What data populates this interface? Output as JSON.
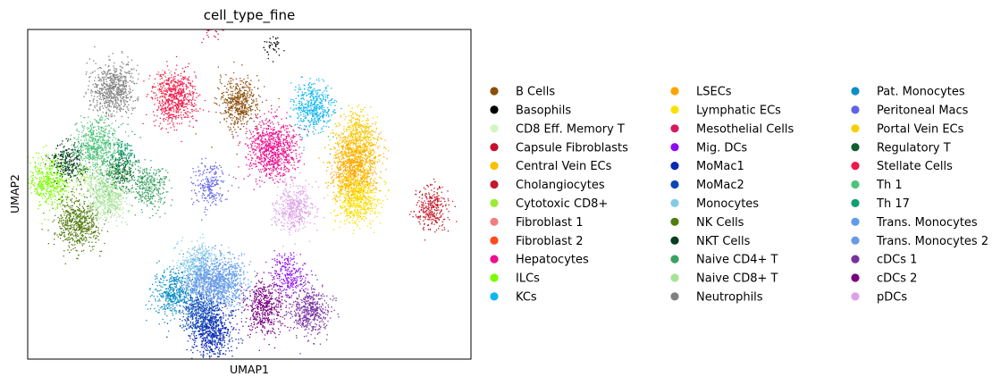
{
  "chart_data": {
    "type": "scatter",
    "title": "cell_type_fine",
    "xlabel": "UMAP1",
    "ylabel": "UMAP2",
    "xticks": [],
    "yticks": [],
    "grid": false,
    "legend_position": "right",
    "x_range": [
      -6.5,
      22
    ],
    "y_range": [
      -6,
      14.5
    ],
    "series": [
      {
        "name": "B Cells",
        "color": "#8b4e0b",
        "clusters": [
          {
            "x": 7.1,
            "y": 9.9,
            "n": 500
          }
        ]
      },
      {
        "name": "Basophils",
        "color": "#000000",
        "clusters": [
          {
            "x": 9.2,
            "y": 13.5,
            "n": 40
          }
        ]
      },
      {
        "name": "CD8 Eff. Memory T",
        "color": "#d4f5c2",
        "clusters": [
          {
            "x": -1.8,
            "y": 6.2,
            "n": 30
          }
        ]
      },
      {
        "name": "Capsule Fibroblasts",
        "color": "#c8102e",
        "clusters": [
          {
            "x": 5.6,
            "y": 14.9,
            "n": 60
          }
        ]
      },
      {
        "name": "Central Vein ECs",
        "color": "#fbbf00",
        "clusters": [
          {
            "x": 14.6,
            "y": 7.2,
            "n": 650
          }
        ]
      },
      {
        "name": "Cholangiocytes",
        "color": "#c21a2a",
        "clusters": [
          {
            "x": 19.5,
            "y": 3.4,
            "n": 300
          }
        ]
      },
      {
        "name": "Cytotoxic CD8+",
        "color": "#9eea38",
        "clusters": [
          {
            "x": -2.8,
            "y": 5.5,
            "n": 60
          }
        ]
      },
      {
        "name": "Fibroblast 1",
        "color": "#f08080",
        "clusters": [
          {
            "x": 2.3,
            "y": 11.1,
            "n": 60
          }
        ]
      },
      {
        "name": "Fibroblast 2",
        "color": "#ff4a1c",
        "clusters": [
          {
            "x": 2.4,
            "y": 10.9,
            "n": 15
          }
        ]
      },
      {
        "name": "Hepatocytes",
        "color": "#ec0f8f",
        "clusters": [
          {
            "x": 9.2,
            "y": 7.0,
            "n": 850
          }
        ]
      },
      {
        "name": "ILCs",
        "color": "#7cfc00",
        "clusters": [
          {
            "x": -5.1,
            "y": 5.0,
            "n": 480
          }
        ]
      },
      {
        "name": "KCs",
        "color": "#10b6f0",
        "clusters": [
          {
            "x": 11.8,
            "y": 9.7,
            "n": 480
          }
        ]
      },
      {
        "name": "LSECs",
        "color": "#fda300",
        "clusters": [
          {
            "x": 14.5,
            "y": 5.5,
            "n": 650
          }
        ]
      },
      {
        "name": "Lymphatic ECs",
        "color": "#fae105",
        "clusters": [
          {
            "x": 14.7,
            "y": 4.0,
            "n": 600
          }
        ]
      },
      {
        "name": "Mesothelial Cells",
        "color": "#d8175f",
        "clusters": [
          {
            "x": 5.0,
            "y": 14.7,
            "n": 40
          }
        ]
      },
      {
        "name": "Mig. DCs",
        "color": "#8f0bf0",
        "clusters": [
          {
            "x": 10.3,
            "y": -0.8,
            "n": 250
          }
        ]
      },
      {
        "name": "MoMac1",
        "color": "#0a28b4",
        "clusters": [
          {
            "x": 5.4,
            "y": -4.3,
            "n": 600
          }
        ]
      },
      {
        "name": "MoMac2",
        "color": "#0a46b4",
        "clusters": [
          {
            "x": 4.6,
            "y": -3.1,
            "n": 450
          }
        ]
      },
      {
        "name": "Monocytes",
        "color": "#82cce8",
        "clusters": [
          {
            "x": 4.4,
            "y": -0.2,
            "n": 450
          }
        ]
      },
      {
        "name": "NK Cells",
        "color": "#537c0f",
        "clusters": [
          {
            "x": -3.3,
            "y": 2.4,
            "n": 600
          }
        ]
      },
      {
        "name": "NKT Cells",
        "color": "#063d24",
        "clusters": [
          {
            "x": -3.9,
            "y": 6.2,
            "n": 280
          }
        ]
      },
      {
        "name": "Naive CD4+ T",
        "color": "#3aa262",
        "clusters": [
          {
            "x": 1.3,
            "y": 4.6,
            "n": 320
          },
          {
            "x": -0.8,
            "y": 5.6,
            "n": 200
          }
        ]
      },
      {
        "name": "Naive CD8+ T",
        "color": "#a6e397",
        "clusters": [
          {
            "x": -1.4,
            "y": 4.2,
            "n": 550
          }
        ]
      },
      {
        "name": "Neutrophils",
        "color": "#808080",
        "clusters": [
          {
            "x": -1.0,
            "y": 10.8,
            "n": 650
          }
        ]
      },
      {
        "name": "Pat. Monocytes",
        "color": "#0a8ec4",
        "clusters": [
          {
            "x": 2.8,
            "y": -1.9,
            "n": 450
          }
        ]
      },
      {
        "name": "Peritoneal Macs",
        "color": "#6262e8",
        "clusters": [
          {
            "x": 5.2,
            "y": 4.8,
            "n": 230
          }
        ]
      },
      {
        "name": "Portal Vein ECs",
        "color": "#f8d000",
        "clusters": [
          {
            "x": 14.9,
            "y": 8.4,
            "n": 120
          }
        ]
      },
      {
        "name": "Regulatory T",
        "color": "#0f5e2b",
        "clusters": [
          {
            "x": -0.4,
            "y": 5.7,
            "n": 140
          }
        ]
      },
      {
        "name": "Stellate Cells",
        "color": "#f0184a",
        "clusters": [
          {
            "x": 3.0,
            "y": 10.2,
            "n": 600
          }
        ]
      },
      {
        "name": "Th 1",
        "color": "#4cc47a",
        "clusters": [
          {
            "x": -2.1,
            "y": 7.3,
            "n": 550
          }
        ]
      },
      {
        "name": "Th 17",
        "color": "#0fa070",
        "clusters": [
          {
            "x": -0.3,
            "y": 6.9,
            "n": 120
          }
        ]
      },
      {
        "name": "Trans. Monocytes",
        "color": "#5f9cec",
        "clusters": [
          {
            "x": 6.3,
            "y": -1.2,
            "n": 550
          }
        ]
      },
      {
        "name": "Trans. Monocytes 2",
        "color": "#6a98e6",
        "clusters": [
          {
            "x": 4.9,
            "y": -1.3,
            "n": 550
          }
        ]
      },
      {
        "name": "cDCs 1",
        "color": "#7832a0",
        "clusters": [
          {
            "x": 11.6,
            "y": -3.0,
            "n": 480
          }
        ]
      },
      {
        "name": "cDCs 2",
        "color": "#7a0080",
        "clusters": [
          {
            "x": 8.7,
            "y": -2.8,
            "n": 500
          }
        ]
      },
      {
        "name": "pDCs",
        "color": "#dda0e8",
        "clusters": [
          {
            "x": 10.6,
            "y": 3.4,
            "n": 450
          }
        ]
      }
    ]
  }
}
